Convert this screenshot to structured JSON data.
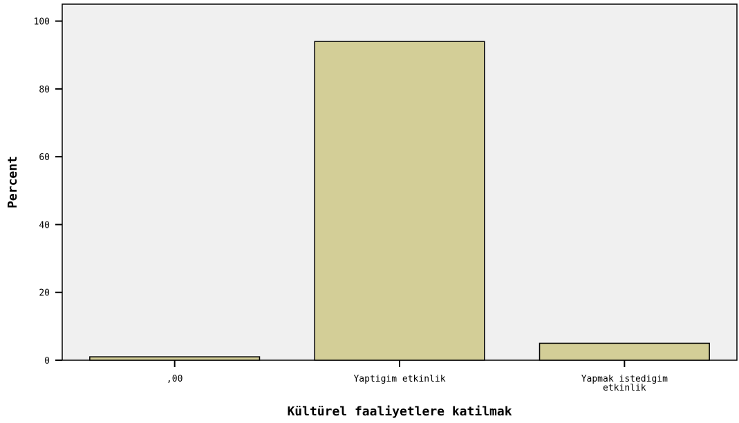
{
  "chart_data": {
    "type": "bar",
    "title": "",
    "xlabel": "Kültürel faaliyetlere katilmak",
    "ylabel": "Percent",
    "categories": [
      ",00",
      "Yaptigim etkinlik",
      "Yapmak istedigim etkinlik"
    ],
    "category_label_lines": [
      [
        ",00"
      ],
      [
        "Yaptigim etkinlik"
      ],
      [
        "Yapmak istedigim",
        "etkinlik"
      ]
    ],
    "values": [
      1.0,
      94.0,
      5.0
    ],
    "ylim": [
      0,
      100
    ],
    "yticks": [
      0,
      20,
      40,
      60,
      80,
      100
    ],
    "ytick_labels": [
      "0",
      "20",
      "40",
      "60",
      "80",
      "100"
    ],
    "grid": false,
    "colors": {
      "plot_background": "#f0f0f0",
      "bar_fill": "#d3ce97",
      "bar_stroke": "#000000",
      "axis": "#000000"
    }
  }
}
